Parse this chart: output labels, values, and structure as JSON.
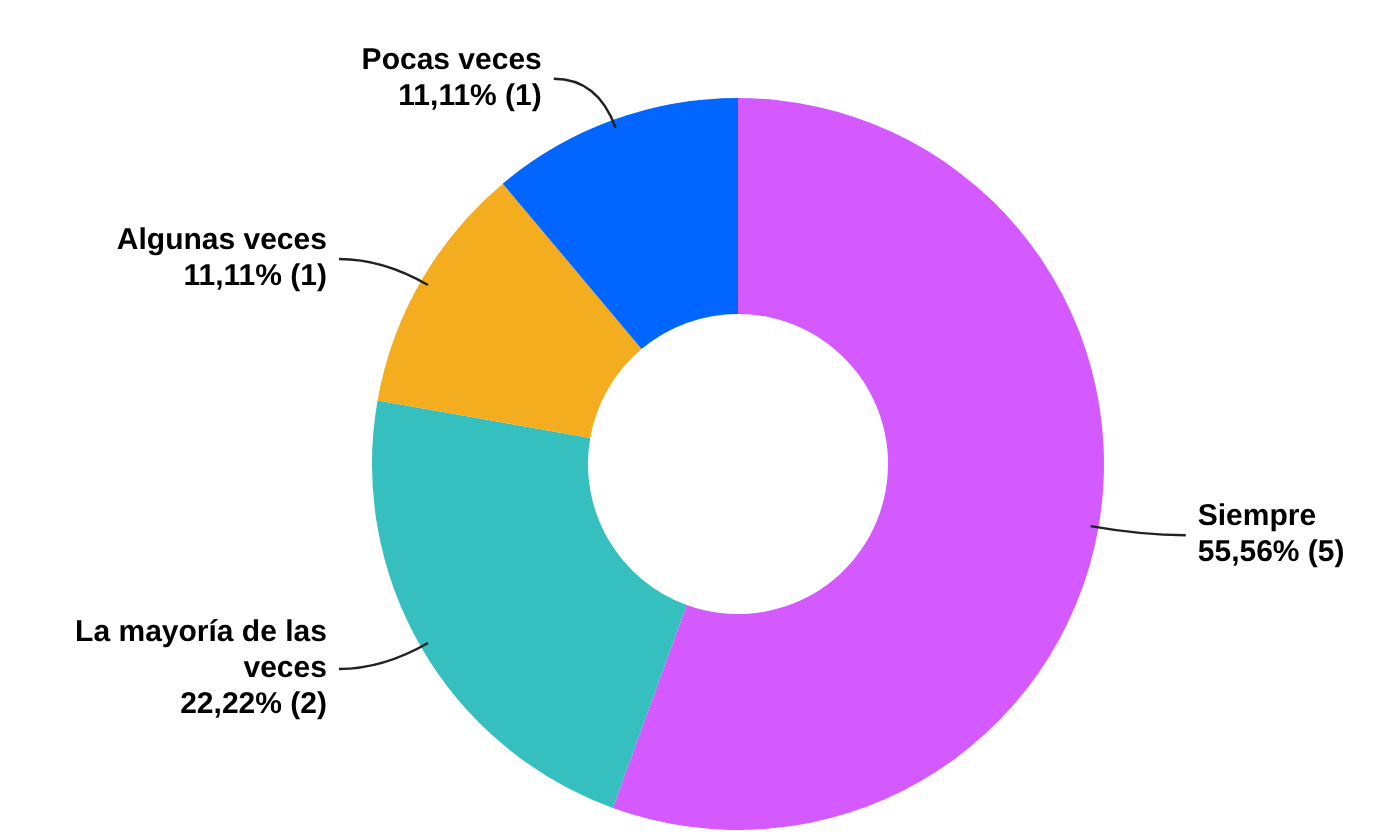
{
  "chart_data": {
    "type": "donut",
    "categories": [
      "Siempre",
      "La mayoría de las veces",
      "Algunas veces",
      "Pocas veces"
    ],
    "values": [
      5,
      2,
      1,
      1
    ],
    "colors": [
      "#d459ff",
      "#36bfbf",
      "#f5ad20",
      "#0066ff"
    ],
    "value_labels": [
      "55,56% (5)",
      "22,22% (2)",
      "11,11% (1)",
      "11,11% (1)"
    ],
    "legend": false
  }
}
